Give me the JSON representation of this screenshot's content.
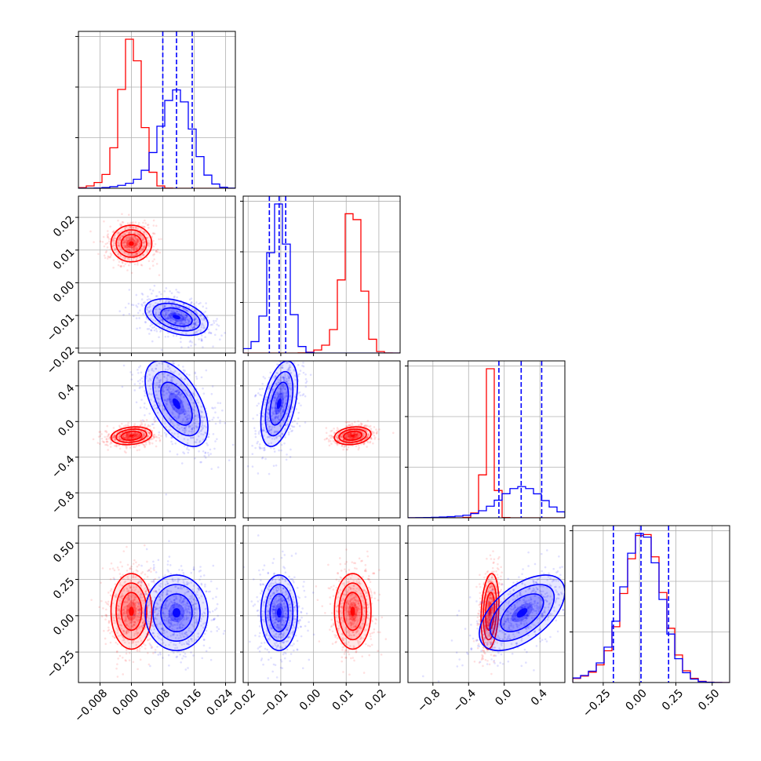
{
  "chart_data": {
    "type": "corner",
    "grid": true,
    "colors": {
      "red": "#ff0000",
      "blue": "#0000ff",
      "grid": "#b0b0b0",
      "axis": "#000000"
    },
    "series": [
      {
        "color_key": "red",
        "means": [
          0.0,
          0.012,
          -0.16,
          0.03
        ],
        "stds": [
          0.0026,
          0.0028,
          0.05,
          0.13
        ],
        "correlations": [
          [
            0,
            2,
            0.2
          ],
          [
            1,
            2,
            0.2
          ],
          [
            2,
            3,
            0.2
          ]
        ]
      },
      {
        "color_key": "blue",
        "means": [
          0.0115,
          -0.0105,
          0.2,
          0.02
        ],
        "stds": [
          0.004,
          0.0028,
          0.24,
          0.13
        ],
        "correlations": [
          [
            0,
            1,
            -0.4
          ],
          [
            0,
            2,
            -0.55
          ],
          [
            1,
            2,
            0.45
          ],
          [
            2,
            3,
            0.55
          ]
        ],
        "quantiles": [
          [
            0.008,
            0.0115,
            0.0155
          ],
          [
            -0.0135,
            -0.0105,
            -0.0085
          ],
          [
            -0.06,
            0.19,
            0.42
          ],
          [
            -0.18,
            0.01,
            0.2
          ]
        ]
      }
    ],
    "dimensions": [
      {
        "range": [
          -0.0135,
          0.0265
        ],
        "ticks": [
          -0.008,
          0.0,
          0.008,
          0.016,
          0.024
        ],
        "tick_labels": [
          "−0.008",
          "0.000",
          "0.008",
          "0.016",
          "0.024"
        ]
      },
      {
        "range": [
          -0.0215,
          0.0265
        ],
        "ticks": [
          -0.02,
          -0.01,
          0.0,
          0.01,
          0.02
        ],
        "tick_labels": [
          "−0.02",
          "−0.01",
          "0.00",
          "0.01",
          "0.02"
        ]
      },
      {
        "range": [
          -1.08,
          0.68
        ],
        "ticks": [
          -0.8,
          -0.4,
          0.0,
          0.4
        ],
        "tick_labels": [
          "−0.8",
          "−0.4",
          "0.0",
          "0.4"
        ]
      },
      {
        "range": [
          -0.46,
          0.62
        ],
        "ticks": [
          -0.25,
          0.0,
          0.25,
          0.5
        ],
        "tick_labels": [
          "−0.25",
          "0.00",
          "0.25",
          "0.50"
        ]
      }
    ]
  }
}
